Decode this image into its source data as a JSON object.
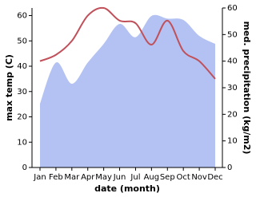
{
  "chart_data": {
    "type": "line-area",
    "x_label": "date (month)",
    "y_label": "max temp (C)",
    "y2_label": "med. precipitation (kg/m2)",
    "categories": [
      "Jan",
      "Feb",
      "Mar",
      "Apr",
      "May",
      "Jun",
      "Jul",
      "Aug",
      "Sep",
      "Oct",
      "Nov",
      "Dec"
    ],
    "ylim": [
      0,
      63
    ],
    "yticks": [
      0,
      10,
      20,
      30,
      40,
      50,
      60
    ],
    "y2lim": [
      0,
      60
    ],
    "y2ticks": [
      0,
      10,
      20,
      30,
      40,
      50,
      60
    ],
    "series": [
      {
        "name": "med. precipitation",
        "kind": "area",
        "axis": "y2",
        "color": "#b3c2f2",
        "values": [
          24,
          39.5,
          31.5,
          39.5,
          46.5,
          54,
          49,
          57,
          56,
          55.5,
          49.5,
          46.5
        ]
      },
      {
        "name": "max temp",
        "kind": "line",
        "color": "#c0505a",
        "values": [
          42,
          44.5,
          50,
          60,
          63,
          58,
          57,
          48.5,
          58,
          46,
          42,
          35
        ]
      }
    ]
  }
}
